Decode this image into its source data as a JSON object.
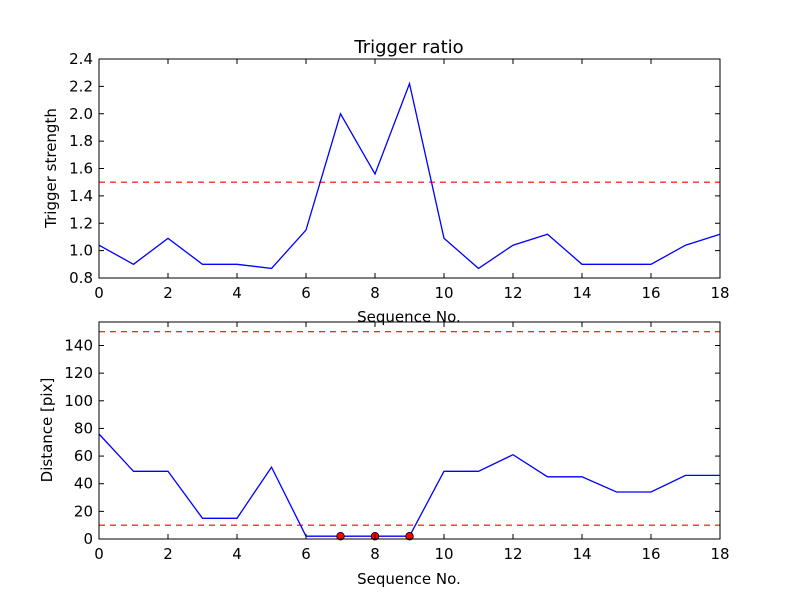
{
  "chart_data": [
    {
      "type": "line",
      "title": "Trigger ratio",
      "xlabel": "Sequence No.",
      "ylabel": "Trigger strength",
      "xlim": [
        0,
        18
      ],
      "ylim": [
        0.8,
        2.4
      ],
      "xticks": [
        0,
        2,
        4,
        6,
        8,
        10,
        12,
        14,
        16,
        18
      ],
      "yticks": [
        0.8,
        1.0,
        1.2,
        1.4,
        1.6,
        1.8,
        2.0,
        2.2,
        2.4
      ],
      "ytick_decimals": 1,
      "series": [
        {
          "color": "#0000ff",
          "x": [
            0,
            1,
            2,
            3,
            4,
            5,
            6,
            7,
            8,
            9,
            10,
            11,
            12,
            13,
            14,
            15,
            16,
            17,
            18
          ],
          "y": [
            1.04,
            0.9,
            1.09,
            0.9,
            0.9,
            0.87,
            1.15,
            2.0,
            1.56,
            2.22,
            1.09,
            0.87,
            1.04,
            1.12,
            0.9,
            0.9,
            0.9,
            1.04,
            1.12
          ]
        }
      ],
      "reference_lines": [
        {
          "y": 1.5,
          "color": "#ff0000",
          "style": "dashed"
        }
      ],
      "markers": []
    },
    {
      "type": "line",
      "title": "",
      "xlabel": "Sequence No.",
      "ylabel": "Distance [pix]",
      "xlim": [
        0,
        18
      ],
      "ylim": [
        0,
        157
      ],
      "xticks": [
        0,
        2,
        4,
        6,
        8,
        10,
        12,
        14,
        16,
        18
      ],
      "yticks": [
        0,
        20,
        40,
        60,
        80,
        100,
        120,
        140
      ],
      "ytick_decimals": 0,
      "series": [
        {
          "color": "#0000ff",
          "x": [
            0,
            1,
            2,
            3,
            4,
            5,
            6,
            7,
            8,
            9,
            10,
            11,
            12,
            13,
            14,
            15,
            16,
            17,
            18
          ],
          "y": [
            76,
            49,
            49,
            15,
            15,
            52,
            2,
            2,
            2,
            2,
            49,
            49,
            61,
            45,
            45,
            34,
            34,
            46,
            46
          ]
        }
      ],
      "reference_lines": [
        {
          "y": 10,
          "color": "#ff0000",
          "style": "dashed"
        },
        {
          "y": 150,
          "color": "#ff0000",
          "style": "dashed"
        }
      ],
      "markers": [
        {
          "x": 7,
          "y": 2,
          "color": "#ff0000"
        },
        {
          "x": 8,
          "y": 2,
          "color": "#ff0000"
        },
        {
          "x": 9,
          "y": 2,
          "color": "#ff0000"
        }
      ]
    }
  ]
}
